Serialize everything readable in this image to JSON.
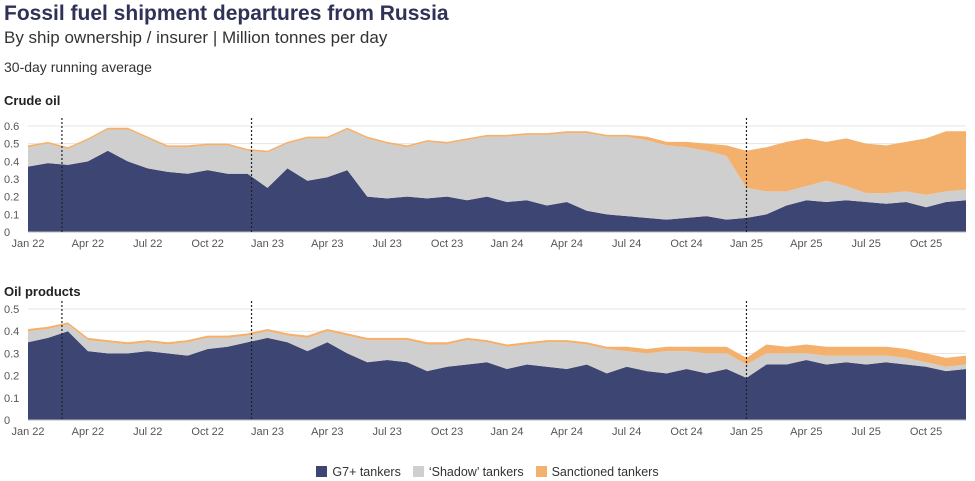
{
  "title": "Fossil fuel shipment departures from Russia",
  "subtitle": "By ship ownership / insurer | Million tonnes per day",
  "note": "30-day running average",
  "colors": {
    "g7": "#3d4572",
    "shadow": "#cfcfcf",
    "sanctioned": "#f4b16e",
    "grid": "#e4e4e4",
    "axis": "#888888",
    "marker": "#222222"
  },
  "legend": [
    {
      "label": "G7+ tankers",
      "color": "#3d4572"
    },
    {
      "label": "‘Shadow’ tankers",
      "color": "#cfcfcf"
    },
    {
      "label": "Sanctioned tankers",
      "color": "#f4b16e"
    }
  ],
  "chart_data": [
    {
      "type": "area",
      "stacked": true,
      "title": "Crude oil",
      "x_unit": "months since Jan 2022",
      "xlim": [
        0,
        47
      ],
      "ylim": [
        0,
        0.6
      ],
      "yticks": [
        0,
        0.1,
        0.2,
        0.3,
        0.4,
        0.5,
        0.6
      ],
      "xtick_positions": [
        0,
        3,
        6,
        9,
        12,
        15,
        18,
        21,
        24,
        27,
        30,
        33,
        36,
        39,
        42,
        45
      ],
      "xtick_labels": [
        "Jan 22",
        "Apr 22",
        "Jul 22",
        "Oct 22",
        "Jan 23",
        "Apr 23",
        "Jul 23",
        "Oct 23",
        "Jan 24",
        "Apr 24",
        "Jul 24",
        "Oct 24",
        "Jan 25",
        "Apr 25",
        "Jul 25",
        "Oct 25"
      ],
      "event_lines": [
        1.7,
        11.2,
        36.0
      ],
      "x": [
        0,
        1,
        2,
        3,
        4,
        5,
        6,
        7,
        8,
        9,
        10,
        11,
        12,
        13,
        14,
        15,
        16,
        17,
        18,
        19,
        20,
        21,
        22,
        23,
        24,
        25,
        26,
        27,
        28,
        29,
        30,
        31,
        32,
        33,
        34,
        35,
        36,
        37,
        38,
        39,
        40,
        41,
        42,
        43,
        44,
        45,
        46,
        47
      ],
      "series": [
        {
          "name": "G7+ tankers",
          "values": [
            0.37,
            0.39,
            0.38,
            0.4,
            0.46,
            0.4,
            0.36,
            0.34,
            0.33,
            0.35,
            0.33,
            0.33,
            0.25,
            0.36,
            0.29,
            0.31,
            0.35,
            0.2,
            0.19,
            0.2,
            0.19,
            0.2,
            0.18,
            0.2,
            0.17,
            0.18,
            0.15,
            0.17,
            0.12,
            0.1,
            0.09,
            0.08,
            0.07,
            0.08,
            0.09,
            0.07,
            0.08,
            0.1,
            0.15,
            0.18,
            0.17,
            0.18,
            0.17,
            0.16,
            0.17,
            0.14,
            0.17,
            0.18
          ]
        },
        {
          "name": "‘Shadow’ tankers",
          "values": [
            0.11,
            0.11,
            0.09,
            0.12,
            0.12,
            0.18,
            0.17,
            0.14,
            0.15,
            0.14,
            0.16,
            0.13,
            0.2,
            0.14,
            0.24,
            0.22,
            0.23,
            0.33,
            0.31,
            0.28,
            0.32,
            0.3,
            0.34,
            0.34,
            0.37,
            0.37,
            0.4,
            0.39,
            0.44,
            0.44,
            0.45,
            0.44,
            0.42,
            0.4,
            0.37,
            0.36,
            0.17,
            0.13,
            0.08,
            0.08,
            0.12,
            0.08,
            0.05,
            0.06,
            0.06,
            0.07,
            0.06,
            0.06
          ]
        },
        {
          "name": "Sanctioned tankers",
          "values": [
            0.01,
            0.01,
            0.01,
            0.01,
            0.01,
            0.01,
            0.01,
            0.01,
            0.01,
            0.01,
            0.01,
            0.01,
            0.01,
            0.01,
            0.01,
            0.01,
            0.01,
            0.01,
            0.01,
            0.01,
            0.01,
            0.01,
            0.01,
            0.01,
            0.01,
            0.01,
            0.01,
            0.01,
            0.01,
            0.01,
            0.01,
            0.02,
            0.02,
            0.03,
            0.04,
            0.06,
            0.21,
            0.25,
            0.28,
            0.27,
            0.22,
            0.27,
            0.28,
            0.27,
            0.28,
            0.32,
            0.34,
            0.33
          ]
        }
      ]
    },
    {
      "type": "area",
      "stacked": true,
      "title": "Oil products",
      "x_unit": "months since Jan 2022",
      "xlim": [
        0,
        47
      ],
      "ylim": [
        0,
        0.5
      ],
      "yticks": [
        0,
        0.1,
        0.2,
        0.3,
        0.4,
        0.5
      ],
      "xtick_positions": [
        0,
        3,
        6,
        9,
        12,
        15,
        18,
        21,
        24,
        27,
        30,
        33,
        36,
        39,
        42,
        45
      ],
      "xtick_labels": [
        "Jan 22",
        "Apr 22",
        "Jul 22",
        "Oct 22",
        "Jan 23",
        "Apr 23",
        "Jul 23",
        "Oct 23",
        "Jan 24",
        "Apr 24",
        "Jul 24",
        "Oct 24",
        "Jan 25",
        "Apr 25",
        "Jul 25",
        "Oct 25"
      ],
      "event_lines": [
        1.7,
        11.2,
        36.0
      ],
      "x": [
        0,
        1,
        2,
        3,
        4,
        5,
        6,
        7,
        8,
        9,
        10,
        11,
        12,
        13,
        14,
        15,
        16,
        17,
        18,
        19,
        20,
        21,
        22,
        23,
        24,
        25,
        26,
        27,
        28,
        29,
        30,
        31,
        32,
        33,
        34,
        35,
        36,
        37,
        38,
        39,
        40,
        41,
        42,
        43,
        44,
        45,
        46,
        47
      ],
      "series": [
        {
          "name": "G7+ tankers",
          "values": [
            0.35,
            0.37,
            0.4,
            0.31,
            0.3,
            0.3,
            0.31,
            0.3,
            0.29,
            0.32,
            0.33,
            0.35,
            0.37,
            0.35,
            0.31,
            0.35,
            0.3,
            0.26,
            0.27,
            0.26,
            0.22,
            0.24,
            0.25,
            0.26,
            0.23,
            0.25,
            0.24,
            0.23,
            0.25,
            0.21,
            0.24,
            0.22,
            0.21,
            0.23,
            0.21,
            0.23,
            0.19,
            0.25,
            0.25,
            0.27,
            0.25,
            0.26,
            0.25,
            0.26,
            0.25,
            0.24,
            0.22,
            0.23
          ]
        },
        {
          "name": "‘Shadow’ tankers",
          "values": [
            0.05,
            0.04,
            0.03,
            0.05,
            0.05,
            0.04,
            0.04,
            0.04,
            0.06,
            0.05,
            0.04,
            0.03,
            0.03,
            0.03,
            0.06,
            0.05,
            0.08,
            0.1,
            0.09,
            0.1,
            0.12,
            0.1,
            0.11,
            0.09,
            0.1,
            0.09,
            0.11,
            0.12,
            0.09,
            0.11,
            0.07,
            0.08,
            0.1,
            0.08,
            0.09,
            0.07,
            0.06,
            0.05,
            0.05,
            0.03,
            0.04,
            0.03,
            0.04,
            0.03,
            0.03,
            0.02,
            0.02,
            0.02
          ]
        },
        {
          "name": "Sanctioned tankers",
          "values": [
            0.01,
            0.01,
            0.01,
            0.01,
            0.01,
            0.01,
            0.01,
            0.01,
            0.01,
            0.01,
            0.01,
            0.01,
            0.01,
            0.01,
            0.01,
            0.01,
            0.01,
            0.01,
            0.01,
            0.01,
            0.01,
            0.01,
            0.01,
            0.01,
            0.01,
            0.01,
            0.01,
            0.01,
            0.01,
            0.01,
            0.02,
            0.02,
            0.02,
            0.02,
            0.03,
            0.03,
            0.03,
            0.04,
            0.03,
            0.04,
            0.04,
            0.04,
            0.04,
            0.04,
            0.04,
            0.04,
            0.04,
            0.04
          ]
        }
      ]
    }
  ]
}
